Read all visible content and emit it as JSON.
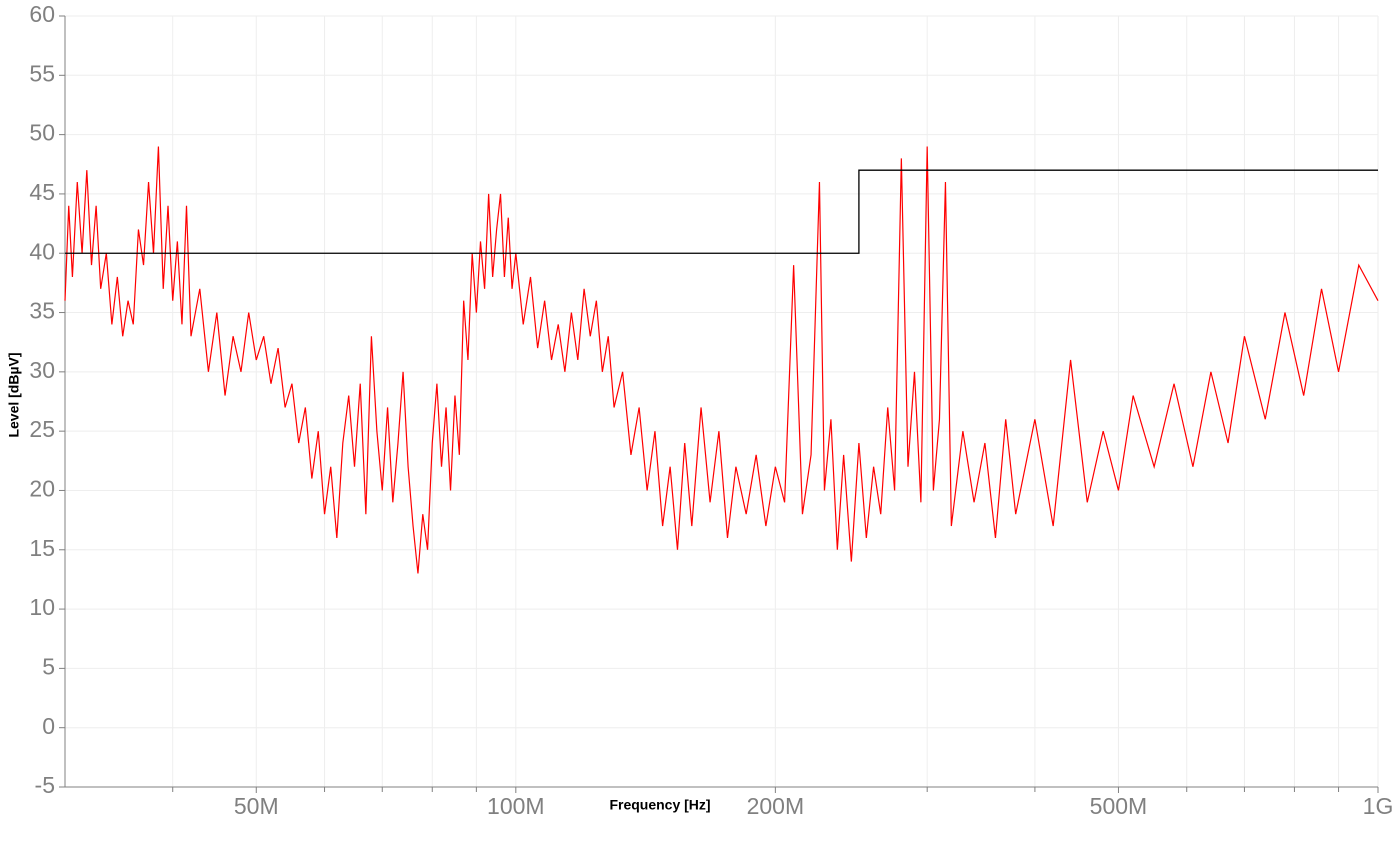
{
  "chart_data": {
    "type": "line",
    "xlabel": "Frequency [Hz]",
    "ylabel": "Level [dBµV]",
    "xscale": "log",
    "grid": true,
    "xlim": [
      30000000.0,
      1000000000.0
    ],
    "ylim": [
      -5,
      60
    ],
    "yticks": [
      -5,
      0,
      5,
      10,
      15,
      20,
      25,
      30,
      35,
      40,
      45,
      50,
      55,
      60
    ],
    "xticks": [
      {
        "value": 50000000.0,
        "label": "50M"
      },
      {
        "value": 100000000.0,
        "label": "100M"
      },
      {
        "value": 200000000.0,
        "label": "200M"
      },
      {
        "value": 500000000.0,
        "label": "500M"
      },
      {
        "value": 1000000000.0,
        "label": "1G"
      }
    ],
    "xgrid_minor": [
      40000000.0,
      60000000.0,
      70000000.0,
      80000000.0,
      90000000.0,
      300000000.0,
      400000000.0,
      600000000.0,
      700000000.0,
      800000000.0,
      900000000.0
    ],
    "series": [
      {
        "color": "#ff0000",
        "x": [
          30000000.0,
          30300000.0,
          30600000.0,
          31000000.0,
          31400000.0,
          31800000.0,
          32200000.0,
          32600000.0,
          33000000.0,
          33500000.0,
          34000000.0,
          34500000.0,
          35000000.0,
          35500000.0,
          36000000.0,
          36500000.0,
          37000000.0,
          37500000.0,
          38000000.0,
          38500000.0,
          39000000.0,
          39500000.0,
          40000000.0,
          40500000.0,
          41000000.0,
          41500000.0,
          42000000.0,
          43000000.0,
          44000000.0,
          45000000.0,
          46000000.0,
          47000000.0,
          48000000.0,
          49000000.0,
          50000000.0,
          51000000.0,
          52000000.0,
          53000000.0,
          54000000.0,
          55000000.0,
          56000000.0,
          57000000.0,
          58000000.0,
          59000000.0,
          60000000.0,
          61000000.0,
          62000000.0,
          63000000.0,
          64000000.0,
          65000000.0,
          66000000.0,
          67000000.0,
          68000000.0,
          69000000.0,
          70000000.0,
          71000000.0,
          72000000.0,
          73000000.0,
          74000000.0,
          75000000.0,
          76000000.0,
          77000000.0,
          78000000.0,
          79000000.0,
          80000000.0,
          81000000.0,
          82000000.0,
          83000000.0,
          84000000.0,
          85000000.0,
          86000000.0,
          87000000.0,
          88000000.0,
          89000000.0,
          90000000.0,
          91000000.0,
          92000000.0,
          93000000.0,
          94000000.0,
          95000000.0,
          96000000.0,
          97000000.0,
          98000000.0,
          99000000.0,
          100000000.0,
          102000000.0,
          104000000.0,
          106000000.0,
          108000000.0,
          110000000.0,
          112000000.0,
          114000000.0,
          116000000.0,
          118000000.0,
          120000000.0,
          122000000.0,
          124000000.0,
          126000000.0,
          128000000.0,
          130000000.0,
          133000000.0,
          136000000.0,
          139000000.0,
          142000000.0,
          145000000.0,
          148000000.0,
          151000000.0,
          154000000.0,
          157000000.0,
          160000000.0,
          164000000.0,
          168000000.0,
          172000000.0,
          176000000.0,
          180000000.0,
          185000000.0,
          190000000.0,
          195000000.0,
          200000000.0,
          205000000.0,
          210000000.0,
          215000000.0,
          220000000.0,
          225000000.0,
          228000000.0,
          232000000.0,
          236000000.0,
          240000000.0,
          245000000.0,
          250000000.0,
          255000000.0,
          260000000.0,
          265000000.0,
          270000000.0,
          275000000.0,
          280000000.0,
          285000000.0,
          290000000.0,
          295000000.0,
          300000000.0,
          305000000.0,
          310000000.0,
          315000000.0,
          320000000.0,
          330000000.0,
          340000000.0,
          350000000.0,
          360000000.0,
          370000000.0,
          380000000.0,
          400000000.0,
          420000000.0,
          440000000.0,
          460000000.0,
          480000000.0,
          500000000.0,
          520000000.0,
          550000000.0,
          580000000.0,
          610000000.0,
          640000000.0,
          670000000.0,
          700000000.0,
          740000000.0,
          780000000.0,
          820000000.0,
          860000000.0,
          900000000.0,
          950000000.0,
          1000000000.0
        ],
        "values": [
          36,
          44,
          38,
          46,
          40,
          47,
          39,
          44,
          37,
          40,
          34,
          38,
          33,
          36,
          34,
          42,
          39,
          46,
          40,
          49,
          37,
          44,
          36,
          41,
          34,
          44,
          33,
          37,
          30,
          35,
          28,
          33,
          30,
          35,
          31,
          33,
          29,
          32,
          27,
          29,
          24,
          27,
          21,
          25,
          18,
          22,
          16,
          24,
          28,
          22,
          29,
          18,
          33,
          25,
          20,
          27,
          19,
          24,
          30,
          22,
          17,
          13,
          18,
          15,
          24,
          29,
          22,
          27,
          20,
          28,
          23,
          36,
          31,
          40,
          35,
          41,
          37,
          45,
          38,
          42,
          45,
          38,
          43,
          37,
          40,
          34,
          38,
          32,
          36,
          31,
          34,
          30,
          35,
          31,
          37,
          33,
          36,
          30,
          33,
          27,
          30,
          23,
          27,
          20,
          25,
          17,
          22,
          15,
          24,
          17,
          27,
          19,
          25,
          16,
          22,
          18,
          23,
          17,
          22,
          19,
          39,
          18,
          23,
          46,
          20,
          26,
          15,
          23,
          14,
          24,
          16,
          22,
          18,
          27,
          20,
          48,
          22,
          30,
          19,
          49,
          20,
          26,
          46,
          17,
          25,
          19,
          24,
          16,
          26,
          18,
          26,
          17,
          31,
          19,
          25,
          20,
          28,
          22,
          29,
          22,
          30,
          24,
          33,
          26,
          35,
          28,
          37,
          30,
          39,
          36
        ]
      },
      {
        "color": "#000000",
        "x": [
          30000000.0,
          250000000.0,
          250000000.0,
          1000000000.0
        ],
        "values": [
          40,
          40,
          47,
          47
        ]
      }
    ]
  }
}
